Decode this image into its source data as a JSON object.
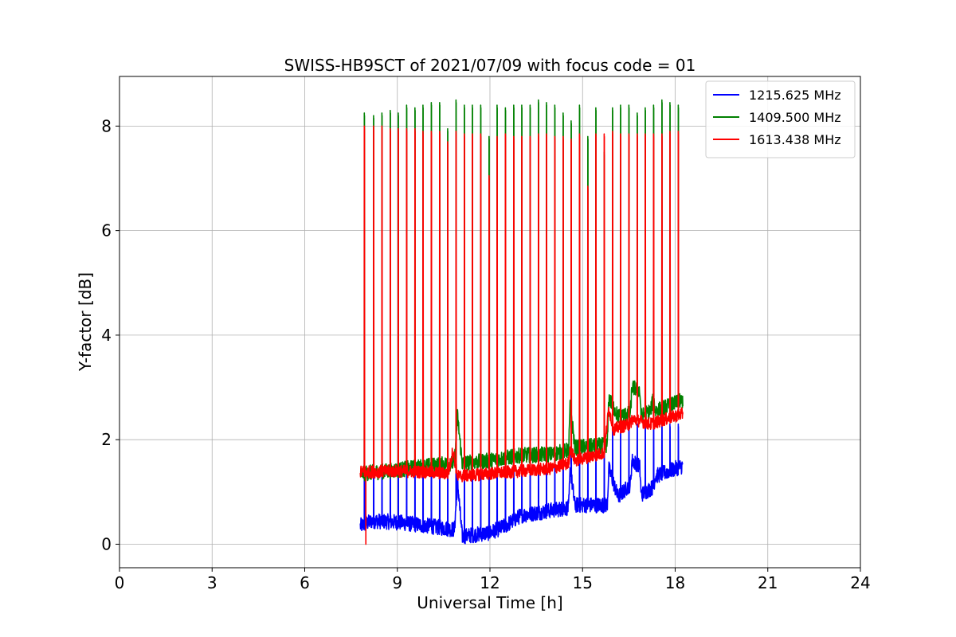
{
  "chart_data": {
    "type": "line",
    "title": "SWISS-HB9SCT of 2021/07/09 with focus code = 01",
    "xlabel": "Universal Time [h]",
    "ylabel": "Y-factor [dB]",
    "xlim": [
      0,
      24
    ],
    "ylim": [
      -0.45,
      8.95
    ],
    "xticks": [
      0,
      3,
      6,
      9,
      12,
      15,
      18,
      21,
      24
    ],
    "yticks": [
      0,
      2,
      4,
      6,
      8
    ],
    "grid": true,
    "legend_position": "top-right",
    "time_range": [
      7.8,
      18.25
    ],
    "spike_times": [
      7.93,
      8.23,
      8.5,
      8.77,
      9.03,
      9.3,
      9.57,
      9.83,
      10.1,
      10.37,
      10.63,
      10.9,
      11.17,
      11.43,
      11.7,
      11.97,
      12.23,
      12.5,
      12.77,
      13.03,
      13.3,
      13.57,
      13.83,
      14.1,
      14.37,
      14.63,
      14.9,
      15.17,
      15.43,
      15.7,
      15.97,
      16.23,
      16.5,
      16.77,
      17.03,
      17.3,
      17.57,
      17.83,
      18.1
    ],
    "series": [
      {
        "name": "1215.625 MHz",
        "color": "#0000ff",
        "noise": 0.15,
        "baseline": [
          [
            7.8,
            0.35
          ],
          [
            8.2,
            0.45
          ],
          [
            9.0,
            0.42
          ],
          [
            10.0,
            0.35
          ],
          [
            10.85,
            0.28
          ],
          [
            10.95,
            1.2
          ],
          [
            11.1,
            0.15
          ],
          [
            12.0,
            0.22
          ],
          [
            12.5,
            0.35
          ],
          [
            13.0,
            0.55
          ],
          [
            14.0,
            0.65
          ],
          [
            14.55,
            0.7
          ],
          [
            14.6,
            1.45
          ],
          [
            14.75,
            0.75
          ],
          [
            15.8,
            0.75
          ],
          [
            15.85,
            1.45
          ],
          [
            16.15,
            0.9
          ],
          [
            16.55,
            1.15
          ],
          [
            16.6,
            1.6
          ],
          [
            16.85,
            1.5
          ],
          [
            16.9,
            0.95
          ],
          [
            17.3,
            1.1
          ],
          [
            17.35,
            1.3
          ],
          [
            18.25,
            1.5
          ]
        ],
        "spike_peak": 2.3
      },
      {
        "name": "1409.500 MHz",
        "color": "#008000",
        "noise": 0.15,
        "baseline": [
          [
            7.8,
            1.35
          ],
          [
            9.0,
            1.42
          ],
          [
            10.0,
            1.5
          ],
          [
            10.85,
            1.55
          ],
          [
            10.95,
            2.45
          ],
          [
            11.1,
            1.55
          ],
          [
            12.0,
            1.6
          ],
          [
            13.0,
            1.7
          ],
          [
            14.0,
            1.72
          ],
          [
            14.55,
            1.8
          ],
          [
            14.6,
            2.7
          ],
          [
            14.75,
            1.85
          ],
          [
            15.8,
            1.9
          ],
          [
            15.85,
            2.8
          ],
          [
            16.15,
            2.45
          ],
          [
            16.55,
            2.5
          ],
          [
            16.6,
            3.0
          ],
          [
            16.85,
            2.95
          ],
          [
            16.9,
            2.45
          ],
          [
            17.2,
            2.55
          ],
          [
            17.3,
            2.8
          ],
          [
            17.35,
            2.55
          ],
          [
            18.25,
            2.75
          ]
        ],
        "peaks": [
          8.25,
          8.2,
          8.25,
          8.3,
          8.25,
          8.4,
          8.35,
          8.4,
          8.45,
          8.45,
          7.95,
          8.5,
          8.4,
          8.4,
          8.4,
          7.8,
          8.4,
          8.35,
          8.4,
          8.4,
          8.4,
          8.5,
          8.45,
          8.4,
          8.25,
          8.1,
          8.4,
          7.8,
          8.35,
          7.5,
          8.35,
          8.4,
          8.4,
          8.25,
          8.35,
          8.4,
          8.5,
          8.45,
          8.4
        ]
      },
      {
        "name": "1613.438 MHz",
        "color": "#ff0000",
        "noise": 0.12,
        "baseline": [
          [
            7.8,
            1.38
          ],
          [
            9.0,
            1.4
          ],
          [
            10.0,
            1.38
          ],
          [
            10.65,
            1.35
          ],
          [
            10.8,
            1.8
          ],
          [
            10.95,
            1.3
          ],
          [
            12.0,
            1.35
          ],
          [
            13.0,
            1.4
          ],
          [
            14.0,
            1.45
          ],
          [
            14.55,
            1.55
          ],
          [
            14.6,
            1.85
          ],
          [
            14.75,
            1.6
          ],
          [
            15.7,
            1.75
          ],
          [
            15.85,
            2.6
          ],
          [
            16.0,
            2.2
          ],
          [
            16.55,
            2.3
          ],
          [
            16.6,
            2.4
          ],
          [
            17.2,
            2.3
          ],
          [
            18.25,
            2.5
          ]
        ],
        "peaks": [
          8.0,
          8.0,
          8.0,
          7.95,
          7.95,
          7.95,
          7.95,
          7.9,
          7.9,
          7.9,
          7.7,
          7.9,
          7.85,
          7.85,
          7.85,
          7.05,
          7.8,
          7.85,
          7.8,
          7.8,
          7.8,
          7.85,
          7.85,
          7.8,
          7.8,
          7.75,
          7.85,
          6.85,
          7.85,
          7.85,
          7.9,
          7.85,
          7.85,
          7.85,
          7.85,
          7.85,
          7.85,
          7.9,
          7.9
        ],
        "dropout": {
          "x": 7.98,
          "y": 0.0
        }
      }
    ]
  }
}
